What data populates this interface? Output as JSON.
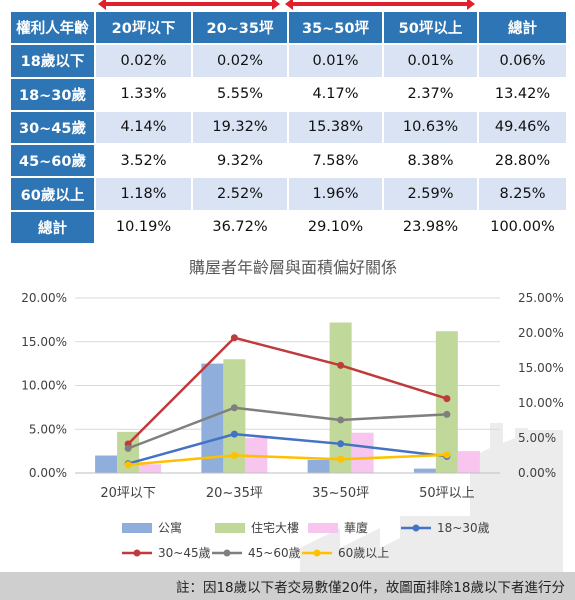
{
  "table": {
    "headers": [
      "權利人年齡",
      "20坪以下",
      "20~35坪",
      "35~50坪",
      "50坪以上",
      "總計"
    ],
    "rows": [
      {
        "label": "18歲以下",
        "values": [
          "0.02%",
          "0.02%",
          "0.01%",
          "0.01%",
          "0.06%"
        ]
      },
      {
        "label": "18~30歲",
        "values": [
          "1.33%",
          "5.55%",
          "4.17%",
          "2.37%",
          "13.42%"
        ]
      },
      {
        "label": "30~45歲",
        "values": [
          "4.14%",
          "19.32%",
          "15.38%",
          "10.63%",
          "49.46%"
        ]
      },
      {
        "label": "45~60歲",
        "values": [
          "3.52%",
          "9.32%",
          "7.58%",
          "8.38%",
          "28.80%"
        ]
      },
      {
        "label": "60歲以上",
        "values": [
          "1.18%",
          "2.52%",
          "1.96%",
          "2.59%",
          "8.25%"
        ]
      },
      {
        "label": "總計",
        "values": [
          "10.19%",
          "36.72%",
          "29.10%",
          "23.98%",
          "100.00%"
        ]
      }
    ]
  },
  "colors": {
    "header_bg": "#2e75b6",
    "row_alt": "#dae3f3",
    "arrow": "#e0202a",
    "bar_apartment": "#8faedb",
    "bar_residential": "#c0d89a",
    "bar_luxury": "#f7c5ee",
    "line_18_30": "#4472c4",
    "line_30_45": "#c0393b",
    "line_45_60": "#7f7f7f",
    "line_60_plus": "#ffc000"
  },
  "chart_data": {
    "type": "bar",
    "title": "購屋者年齡層與面積偏好關係",
    "categories": [
      "20坪以下",
      "20~35坪",
      "35~50坪",
      "50坪以上"
    ],
    "ylim_left": [
      0,
      20
    ],
    "ylim_right": [
      0,
      25
    ],
    "yticks_left": [
      "0.00%",
      "5.00%",
      "10.00%",
      "15.00%",
      "20.00%"
    ],
    "yticks_right": [
      "0.00%",
      "5.00%",
      "10.00%",
      "15.00%",
      "20.00%",
      "25.00%"
    ],
    "grid": true,
    "legend_position": "bottom",
    "bar_series": [
      {
        "name": "公寓",
        "color": "#8faedb",
        "values": [
          2.0,
          12.5,
          1.5,
          0.5
        ]
      },
      {
        "name": "住宅大樓",
        "color": "#c0d89a",
        "values": [
          4.7,
          13.0,
          17.2,
          16.2
        ]
      },
      {
        "name": "華廈",
        "color": "#f7c5ee",
        "values": [
          1.0,
          4.0,
          4.6,
          2.5
        ]
      }
    ],
    "line_series": [
      {
        "name": "18~30歲",
        "color": "#4472c4",
        "axis": "right",
        "values": [
          1.33,
          5.55,
          4.17,
          2.37
        ]
      },
      {
        "name": "30~45歲",
        "color": "#c0393b",
        "axis": "right",
        "values": [
          4.14,
          19.32,
          15.38,
          10.63
        ]
      },
      {
        "name": "45~60歲",
        "color": "#7f7f7f",
        "axis": "right",
        "values": [
          3.52,
          9.32,
          7.58,
          8.38
        ]
      },
      {
        "name": "60歲以上",
        "color": "#ffc000",
        "axis": "right",
        "values": [
          1.18,
          2.52,
          1.96,
          2.59
        ]
      }
    ]
  },
  "footnote": "註：因18歲以下者交易數僅20件，故圖面排除18歲以下者進行分"
}
